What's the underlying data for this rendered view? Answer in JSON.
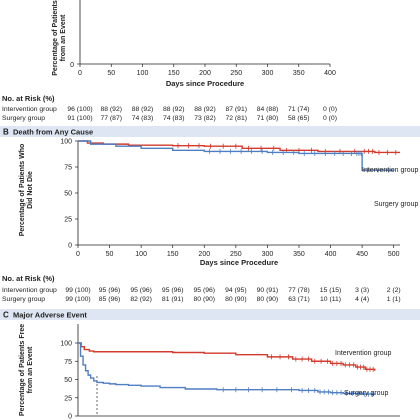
{
  "colors": {
    "intervention": "#d23a2c",
    "surgery": "#4f7fc2",
    "panel_header": "#dde6f2"
  },
  "chart_data": [
    {
      "type": "line",
      "panel": "A",
      "title": "",
      "ylabel_lines": [
        "Percentage of Patients",
        "from an Event"
      ],
      "xlabel": "Days since Procedure",
      "xlim": [
        0,
        400
      ],
      "xticks": [
        "0",
        "50",
        "100",
        "150",
        "200",
        "250",
        "300",
        "350",
        "400"
      ],
      "series": [],
      "risk_table": {
        "header": "No. at Risk (%)",
        "rows": [
          {
            "label": "Intervention group",
            "values": [
              "96 (100)",
              "88 (92)",
              "88 (92)",
              "88 (92)",
              "88 (92)",
              "87 (91)",
              "84 (88)",
              "71 (74)",
              "0 (0)"
            ]
          },
          {
            "label": "Surgery group",
            "values": [
              "91 (100)",
              "77 (87)",
              "74 (83)",
              "74 (83)",
              "73 (82)",
              "72 (81)",
              "71 (80)",
              "58 (65)",
              "0 (0)"
            ]
          }
        ]
      }
    },
    {
      "type": "line",
      "panel": "B",
      "title": "Death from Any Cause",
      "ylabel_lines": [
        "Percentage of Patients Who",
        "Did Not Die"
      ],
      "xlabel": "Days since Procedure",
      "xlim": [
        0,
        510
      ],
      "ylim": [
        0,
        100
      ],
      "xticks": [
        "0",
        "50",
        "100",
        "150",
        "200",
        "250",
        "300",
        "350",
        "400",
        "450",
        "500"
      ],
      "yticks": [
        "0",
        "25",
        "50",
        "75",
        "100"
      ],
      "series": [
        {
          "name": "Intervention group",
          "x": [
            0,
            15,
            40,
            80,
            150,
            200,
            260,
            320,
            380,
            450,
            470,
            510
          ],
          "y": [
            100,
            98,
            97,
            96,
            95.5,
            95,
            93,
            91,
            90,
            90,
            89,
            89
          ]
        },
        {
          "name": "Surgery group",
          "x": [
            0,
            20,
            60,
            100,
            150,
            200,
            250,
            300,
            350,
            400,
            440,
            450,
            500
          ],
          "y": [
            100,
            97,
            95,
            93,
            91,
            90,
            90,
            89,
            88,
            88,
            88,
            72,
            72
          ]
        }
      ],
      "risk_table": {
        "header": "No. at Risk (%)",
        "rows": [
          {
            "label": "Intervention group",
            "values": [
              "99 (100)",
              "95 (96)",
              "95 (96)",
              "95 (96)",
              "95 (96)",
              "94 (95)",
              "90 (91)",
              "77 (78)",
              "15 (15)",
              "3 (3)",
              "2 (2)"
            ]
          },
          {
            "label": "Surgery group",
            "values": [
              "99 (100)",
              "85 (96)",
              "82 (92)",
              "81 (91)",
              "80 (90)",
              "80 (90)",
              "80 (90)",
              "63 (71)",
              "10 (11)",
              "4 (4)",
              "1 (1)"
            ]
          }
        ]
      }
    },
    {
      "type": "line",
      "panel": "C",
      "title": "Major Adverse Event",
      "ylabel_lines": [
        "Percentage of Patients Free",
        "from an Event"
      ],
      "xlim": [
        0,
        510
      ],
      "ylim": [
        0,
        100
      ],
      "yticks": [
        "0",
        "25",
        "50",
        "75",
        "100"
      ],
      "series": [
        {
          "name": "Intervention group",
          "x": [
            0,
            5,
            10,
            18,
            25,
            35,
            60,
            100,
            150,
            200,
            250,
            300,
            340,
            370,
            400,
            420,
            440,
            455,
            470
          ],
          "y": [
            100,
            95,
            91,
            89,
            88,
            88,
            88,
            88,
            87,
            86,
            84,
            81,
            78,
            75,
            72,
            70,
            67,
            64,
            62
          ]
        },
        {
          "name": "Surgery group",
          "x": [
            0,
            4,
            8,
            12,
            16,
            20,
            25,
            30,
            40,
            50,
            60,
            80,
            100,
            130,
            170,
            220,
            280,
            350,
            380,
            400,
            420,
            450,
            470
          ],
          "y": [
            100,
            82,
            70,
            62,
            56,
            52,
            48,
            46,
            45,
            44,
            43,
            42,
            41,
            39,
            37,
            36,
            36,
            35,
            33,
            32,
            31,
            30,
            29
          ]
        }
      ]
    }
  ]
}
